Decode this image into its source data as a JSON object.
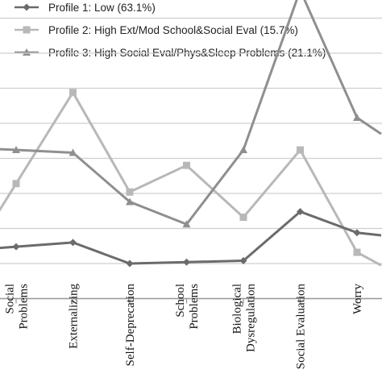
{
  "chart_data": {
    "type": "line",
    "categories": [
      [
        "Social",
        "Problems"
      ],
      [
        "Externalizing"
      ],
      [
        "Self-Deprecation"
      ],
      [
        "School",
        "Problems"
      ],
      [
        "Biological",
        "Dysregulation"
      ],
      [
        "Social Evaluation"
      ],
      [
        "Worry"
      ]
    ],
    "series": [
      {
        "name": "Profile 1: Low (63.1%)",
        "marker": "diamond",
        "color": "#6b6b6b",
        "values": [
          0.12,
          0.15,
          0.0,
          0.01,
          0.02,
          0.37,
          0.22
        ]
      },
      {
        "name": "Profile 2: High Ext/Mod School&Social Eval (15.7%)",
        "marker": "square",
        "color": "#b8b8b8",
        "values": [
          0.57,
          1.22,
          0.51,
          0.7,
          0.33,
          0.81,
          0.08
        ]
      },
      {
        "name": "Profile 3: High Social Eval/Phys&Sleep Problems (21.1%)",
        "marker": "triangle",
        "color": "#8f8f8f",
        "values": [
          0.81,
          0.79,
          0.44,
          0.28,
          0.81,
          1.95,
          1.04
        ]
      }
    ],
    "ylim": [
      -0.25,
      1.97
    ],
    "yticks": [
      -0.25,
      0.0,
      0.25,
      0.5,
      0.75,
      1.0,
      1.25,
      1.5,
      1.75
    ],
    "grid": true,
    "legend_position": "top"
  }
}
